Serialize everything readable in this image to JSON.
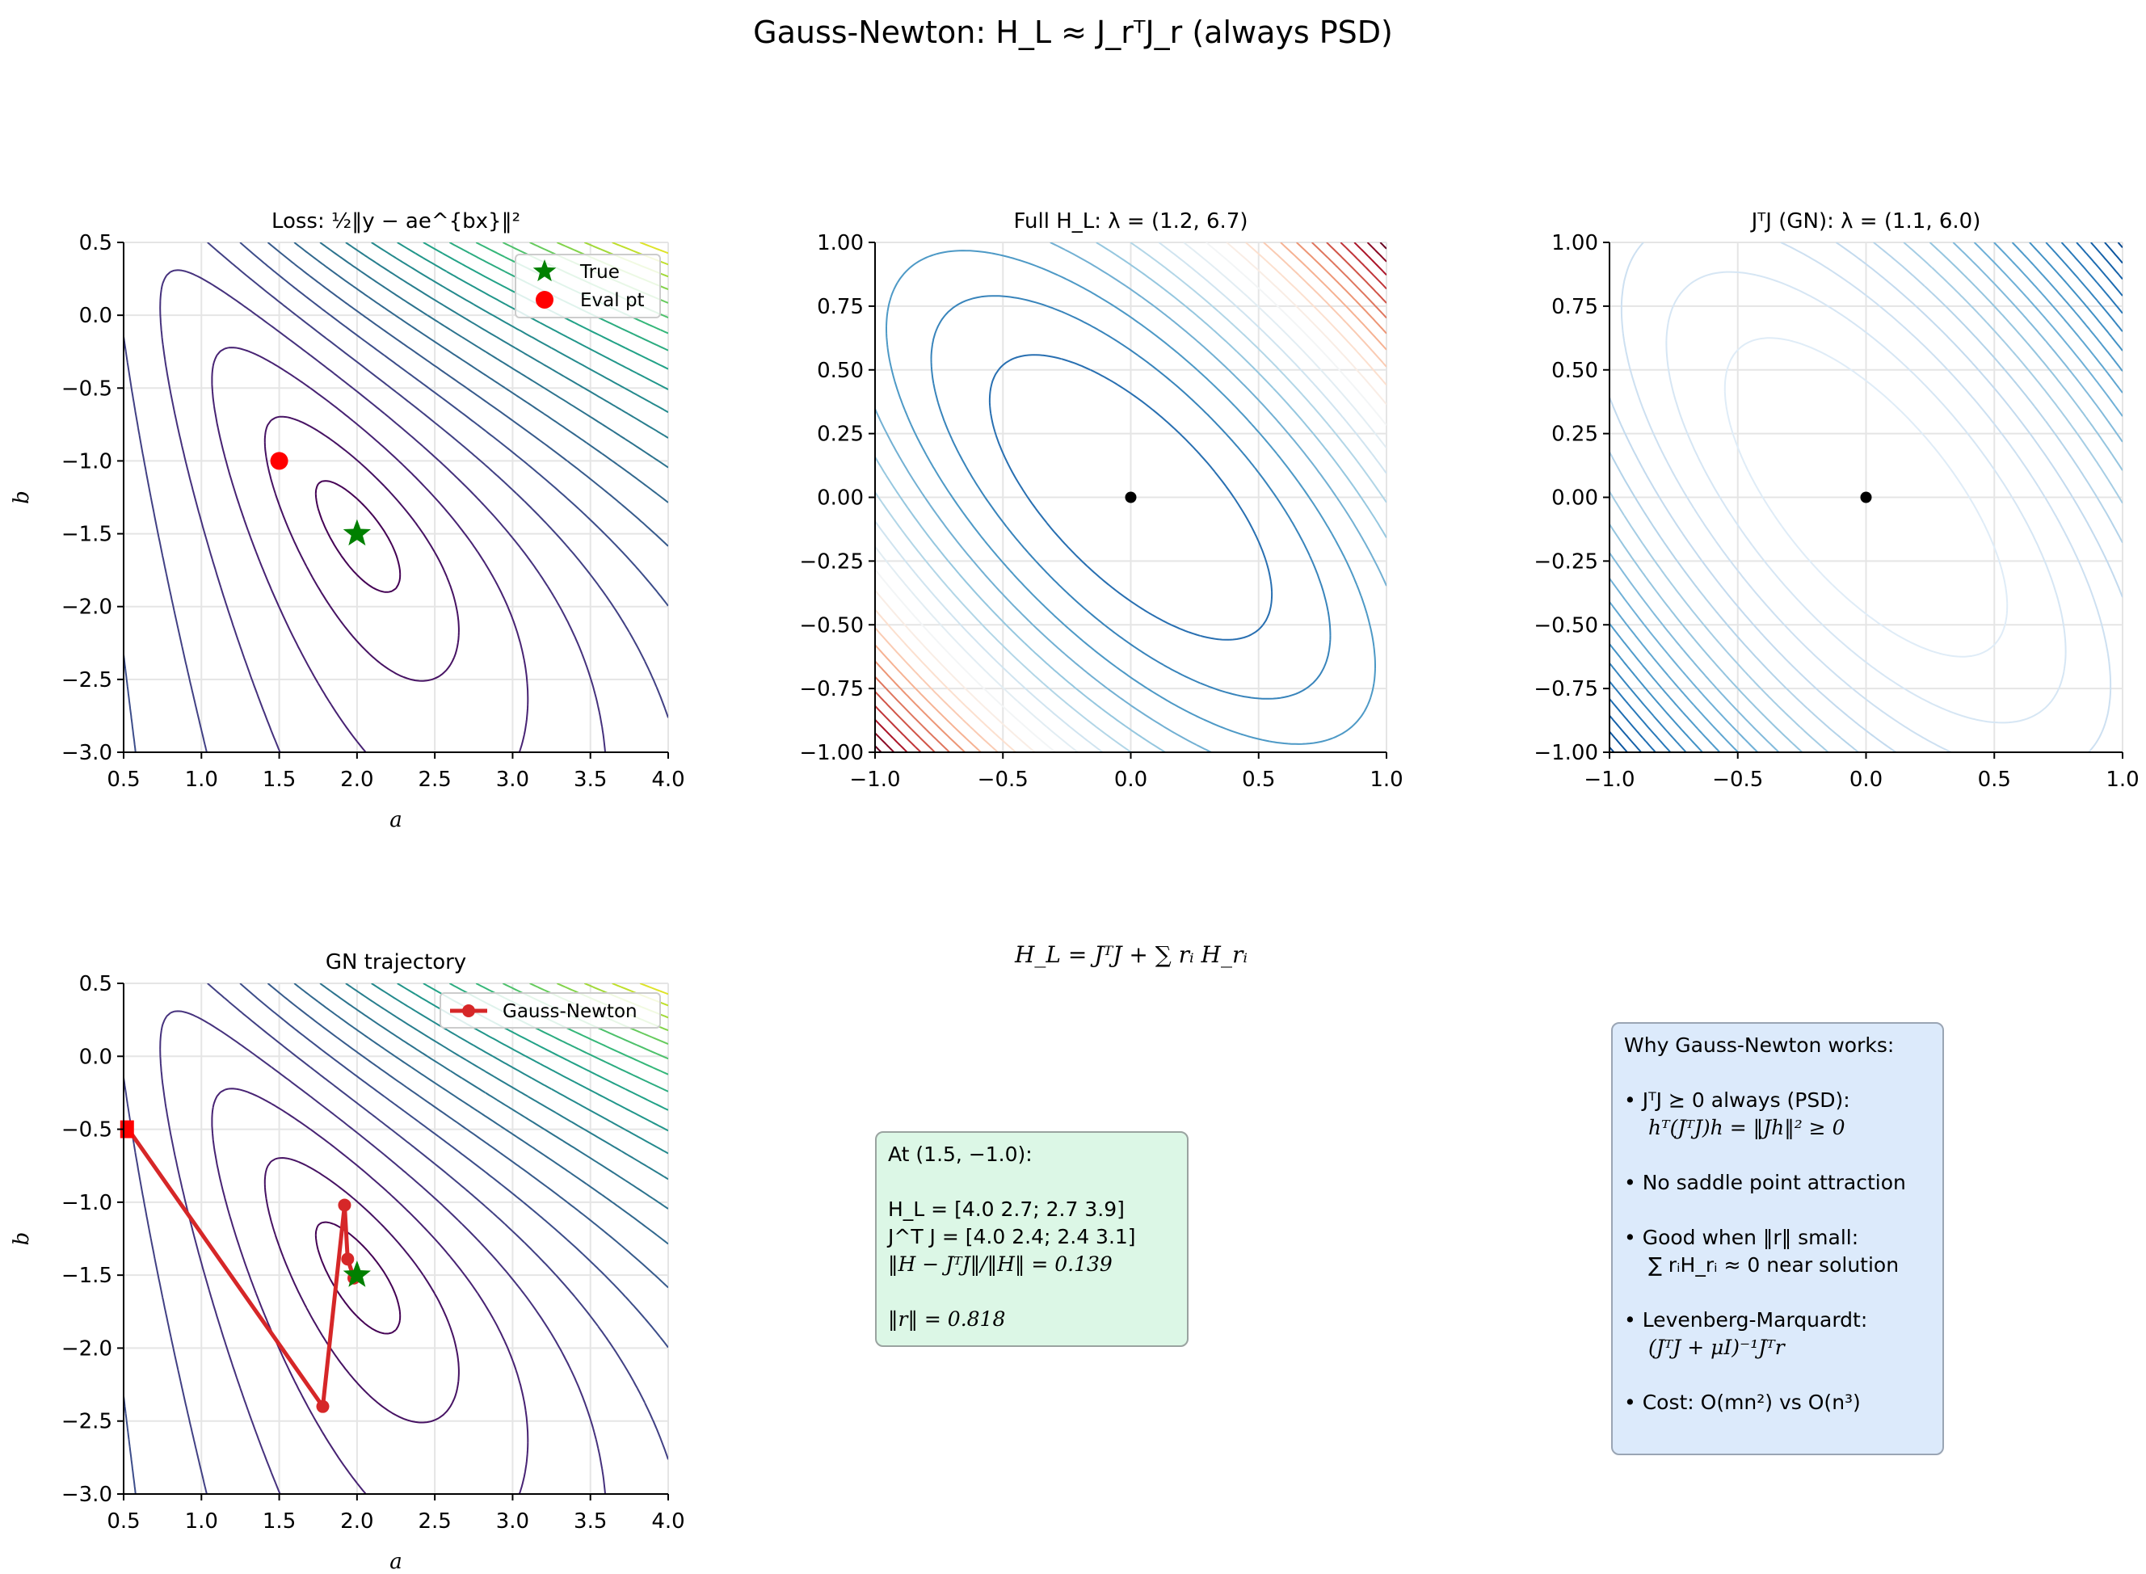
{
  "suptitle": "Gauss-Newton: H_L ≈ J_rᵀJ_r (always PSD)",
  "colors": {
    "trajectory": "#d62728",
    "true_marker": "#008000",
    "eval_marker": "#ff0000",
    "green_box": "#dcf7e6",
    "blue_box": "#dceafb"
  },
  "chart_data": [
    {
      "type": "contour",
      "title": "Loss: ½‖y − ae^{bx}‖²",
      "xlabel": "a",
      "ylabel": "b",
      "xlim": [
        0.5,
        4.0
      ],
      "ylim": [
        -3.0,
        0.5
      ],
      "xticks": [
        "0.5",
        "1.0",
        "1.5",
        "2.0",
        "2.5",
        "3.0",
        "3.5",
        "4.0"
      ],
      "yticks": [
        "−3.0",
        "−2.5",
        "−2.0",
        "−1.5",
        "−1.0",
        "−0.5",
        "0.0",
        "0.5"
      ],
      "grid": true,
      "colormap": "viridis",
      "markers": [
        {
          "name": "True",
          "x": 2.0,
          "y": -1.5,
          "shape": "star"
        },
        {
          "name": "Eval pt",
          "x": 1.5,
          "y": -1.0,
          "shape": "circle"
        }
      ],
      "legend": [
        "True",
        "Eval pt"
      ],
      "legend_position": "top-right"
    },
    {
      "type": "contour",
      "title": "Full H_L: λ = (1.2, 6.7)",
      "xlim": [
        -1,
        1
      ],
      "ylim": [
        -1,
        1
      ],
      "xticks": [
        "−1.0",
        "−0.5",
        "0.0",
        "0.5",
        "1.0"
      ],
      "yticks": [
        "−1.00",
        "−0.75",
        "−0.50",
        "−0.25",
        "0.00",
        "0.25",
        "0.50",
        "0.75",
        "1.00"
      ],
      "grid": true,
      "colormap": "RdBu_r",
      "matrix": [
        [
          4.0,
          2.7
        ],
        [
          2.7,
          3.9
        ]
      ],
      "center_point": [
        0,
        0
      ]
    },
    {
      "type": "contour",
      "title": "JᵀJ (GN): λ = (1.1, 6.0)",
      "xlim": [
        -1,
        1
      ],
      "ylim": [
        -1,
        1
      ],
      "xticks": [
        "−1.0",
        "−0.5",
        "0.0",
        "0.5",
        "1.0"
      ],
      "yticks": [
        "−1.00",
        "−0.75",
        "−0.50",
        "−0.25",
        "0.00",
        "0.25",
        "0.50",
        "0.75",
        "1.00"
      ],
      "grid": true,
      "colormap": "Blues",
      "matrix": [
        [
          4.0,
          2.4
        ],
        [
          2.4,
          3.1
        ]
      ],
      "center_point": [
        0,
        0
      ]
    },
    {
      "type": "line",
      "title": "GN trajectory",
      "xlabel": "a",
      "ylabel": "b",
      "xlim": [
        0.5,
        4.0
      ],
      "ylim": [
        -3.0,
        0.5
      ],
      "xticks": [
        "0.5",
        "1.0",
        "1.5",
        "2.0",
        "2.5",
        "3.0",
        "3.5",
        "4.0"
      ],
      "yticks": [
        "−3.0",
        "−2.5",
        "−2.0",
        "−1.5",
        "−1.0",
        "−0.5",
        "0.0",
        "0.5"
      ],
      "grid": true,
      "colormap": "viridis",
      "series": [
        {
          "name": "Gauss-Newton",
          "x": [
            0.53,
            1.78,
            1.92,
            1.94,
            1.98
          ],
          "y": [
            -0.5,
            -2.4,
            -1.02,
            -1.39,
            -1.52
          ]
        }
      ],
      "true_point": [
        2.0,
        -1.5
      ],
      "legend": [
        "Gauss-Newton"
      ],
      "legend_position": "top-right"
    }
  ],
  "formula": "H_L = JᵀJ + ∑ rᵢ H_rᵢ",
  "info_box": {
    "line1": "At (1.5, −1.0):",
    "line2": "H_L = [4.0  2.7; 2.7  3.9]",
    "line3": "J^T J = [4.0  2.4; 2.4  3.1]",
    "line4": "‖H − JᵀJ‖/‖H‖ = 0.139",
    "line5": "‖r‖ = 0.818"
  },
  "why_box": {
    "heading": "Why Gauss-Newton works:",
    "b1": "• JᵀJ ⪰ 0 always (PSD):",
    "b1_sub": "hᵀ(JᵀJ)h = ‖Jh‖² ≥ 0",
    "b2": "• No saddle point attraction",
    "b3": "• Good when ‖r‖ small:",
    "b3_sub": "∑ rᵢH_rᵢ ≈ 0 near solution",
    "b4": "• Levenberg-Marquardt:",
    "b4_sub": "(JᵀJ + μI)⁻¹Jᵀr",
    "b5": "• Cost: O(mn²) vs O(n³)"
  }
}
